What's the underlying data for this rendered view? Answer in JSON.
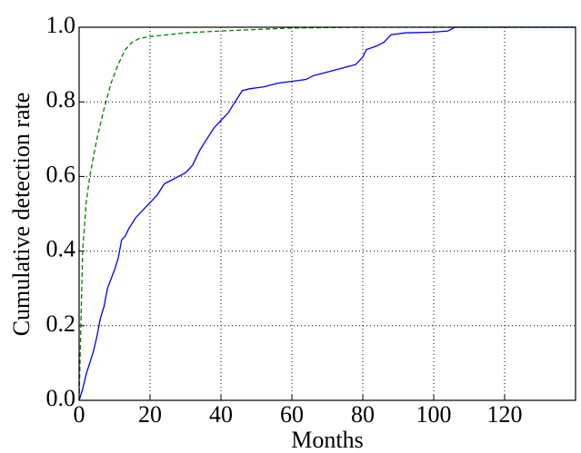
{
  "chart_data": {
    "type": "line",
    "x_label": "Months",
    "y_label": "Cumulative detection rate",
    "xlim": [
      0,
      140
    ],
    "ylim": [
      0,
      1
    ],
    "xticks": [
      0,
      20,
      40,
      60,
      80,
      100,
      120
    ],
    "yticks": [
      {
        "value": 0,
        "label": "0.0"
      },
      0.2,
      0.4,
      0.6,
      0.8,
      {
        "value": 1,
        "label": "1.0"
      }
    ],
    "grid": true,
    "series": [
      {
        "color": "#0000ff",
        "dash": false,
        "x": [
          0,
          1,
          2,
          4,
          5,
          6,
          7,
          8,
          10,
          11,
          12,
          13,
          14,
          16,
          18,
          19,
          20,
          22,
          24,
          26,
          28,
          30,
          32,
          34,
          36,
          38,
          40,
          42,
          44,
          46,
          48,
          52,
          56,
          60,
          64,
          66,
          70,
          74,
          78,
          80,
          81,
          84,
          86,
          88,
          92,
          100,
          104,
          106,
          140
        ],
        "values": [
          0,
          0.03,
          0.07,
          0.13,
          0.17,
          0.22,
          0.25,
          0.3,
          0.35,
          0.38,
          0.43,
          0.44,
          0.46,
          0.49,
          0.51,
          0.52,
          0.53,
          0.55,
          0.58,
          0.59,
          0.6,
          0.61,
          0.63,
          0.67,
          0.7,
          0.73,
          0.75,
          0.77,
          0.8,
          0.83,
          0.835,
          0.84,
          0.85,
          0.855,
          0.86,
          0.87,
          0.88,
          0.89,
          0.9,
          0.92,
          0.94,
          0.95,
          0.96,
          0.98,
          0.985,
          0.987,
          0.99,
          1,
          1
        ]
      },
      {
        "color": "#007f00",
        "dash": true,
        "x": [
          0,
          0.5,
          1,
          2,
          3,
          5,
          7,
          9,
          11,
          13,
          15,
          17,
          20,
          30,
          40,
          60,
          80,
          140
        ],
        "values": [
          0,
          0.2,
          0.4,
          0.53,
          0.6,
          0.7,
          0.78,
          0.85,
          0.9,
          0.94,
          0.96,
          0.97,
          0.975,
          0.985,
          0.99,
          0.998,
          1,
          1
        ]
      }
    ]
  }
}
